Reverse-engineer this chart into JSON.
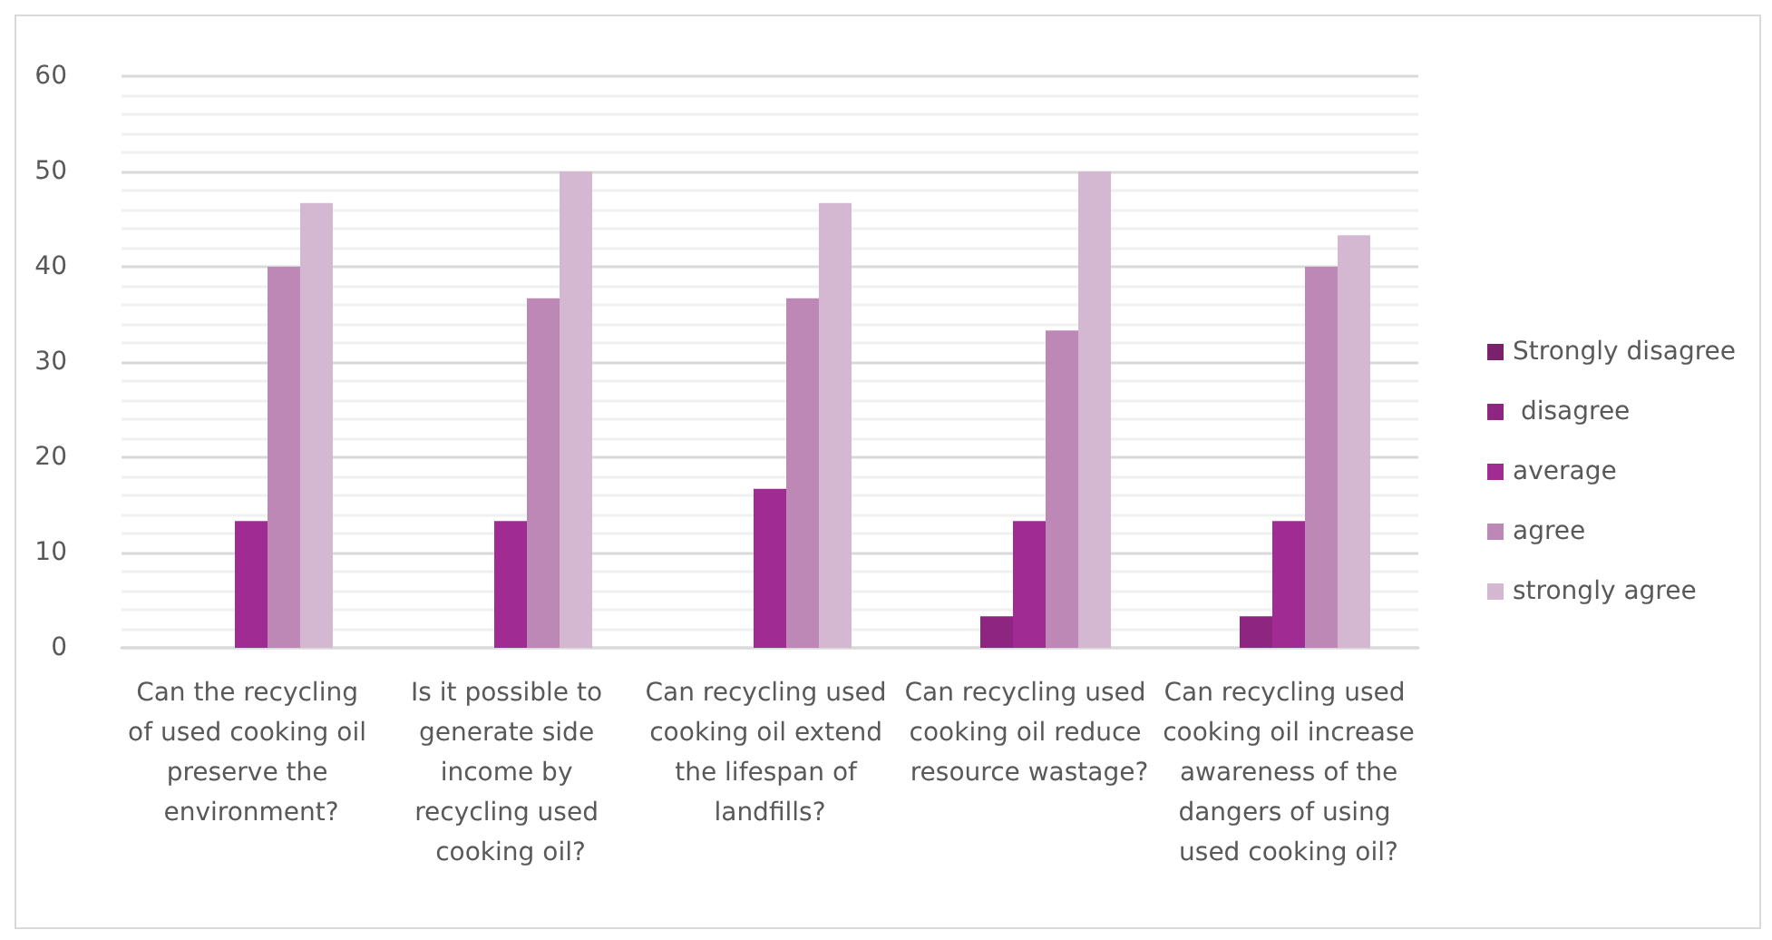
{
  "chart_data": {
    "type": "bar",
    "categories": [
      "Can the recycling of used cooking oil preserve the environment?",
      "Is it possible to generate side income by recycling used cooking oil?",
      "Can recycling used cooking oil extend the lifespan of landfills?",
      "Can recycling used cooking oil reduce resource wastage?",
      "Can recycling used cooking oil increase awareness of the dangers of using used cooking oil?"
    ],
    "series": [
      {
        "name": "Strongly disagree",
        "color": "#7b206d",
        "values": [
          0,
          0,
          0,
          0,
          0
        ]
      },
      {
        "name": " disagree",
        "color": "#8e2581",
        "values": [
          0,
          0,
          0,
          3.3,
          3.3
        ]
      },
      {
        "name": "average",
        "color": "#a02b93",
        "values": [
          13.3,
          13.3,
          16.7,
          13.3,
          13.3
        ]
      },
      {
        "name": "agree",
        "color": "#bd88b5",
        "values": [
          40,
          36.7,
          36.7,
          33.3,
          40
        ]
      },
      {
        "name": "strongly agree",
        "color": "#d4b7d0",
        "values": [
          46.7,
          50,
          46.7,
          50,
          43.3
        ]
      }
    ],
    "ylim": [
      0,
      60
    ],
    "yticks": [
      0,
      10,
      20,
      30,
      40,
      50,
      60
    ],
    "grid": "y",
    "legend": "right"
  }
}
